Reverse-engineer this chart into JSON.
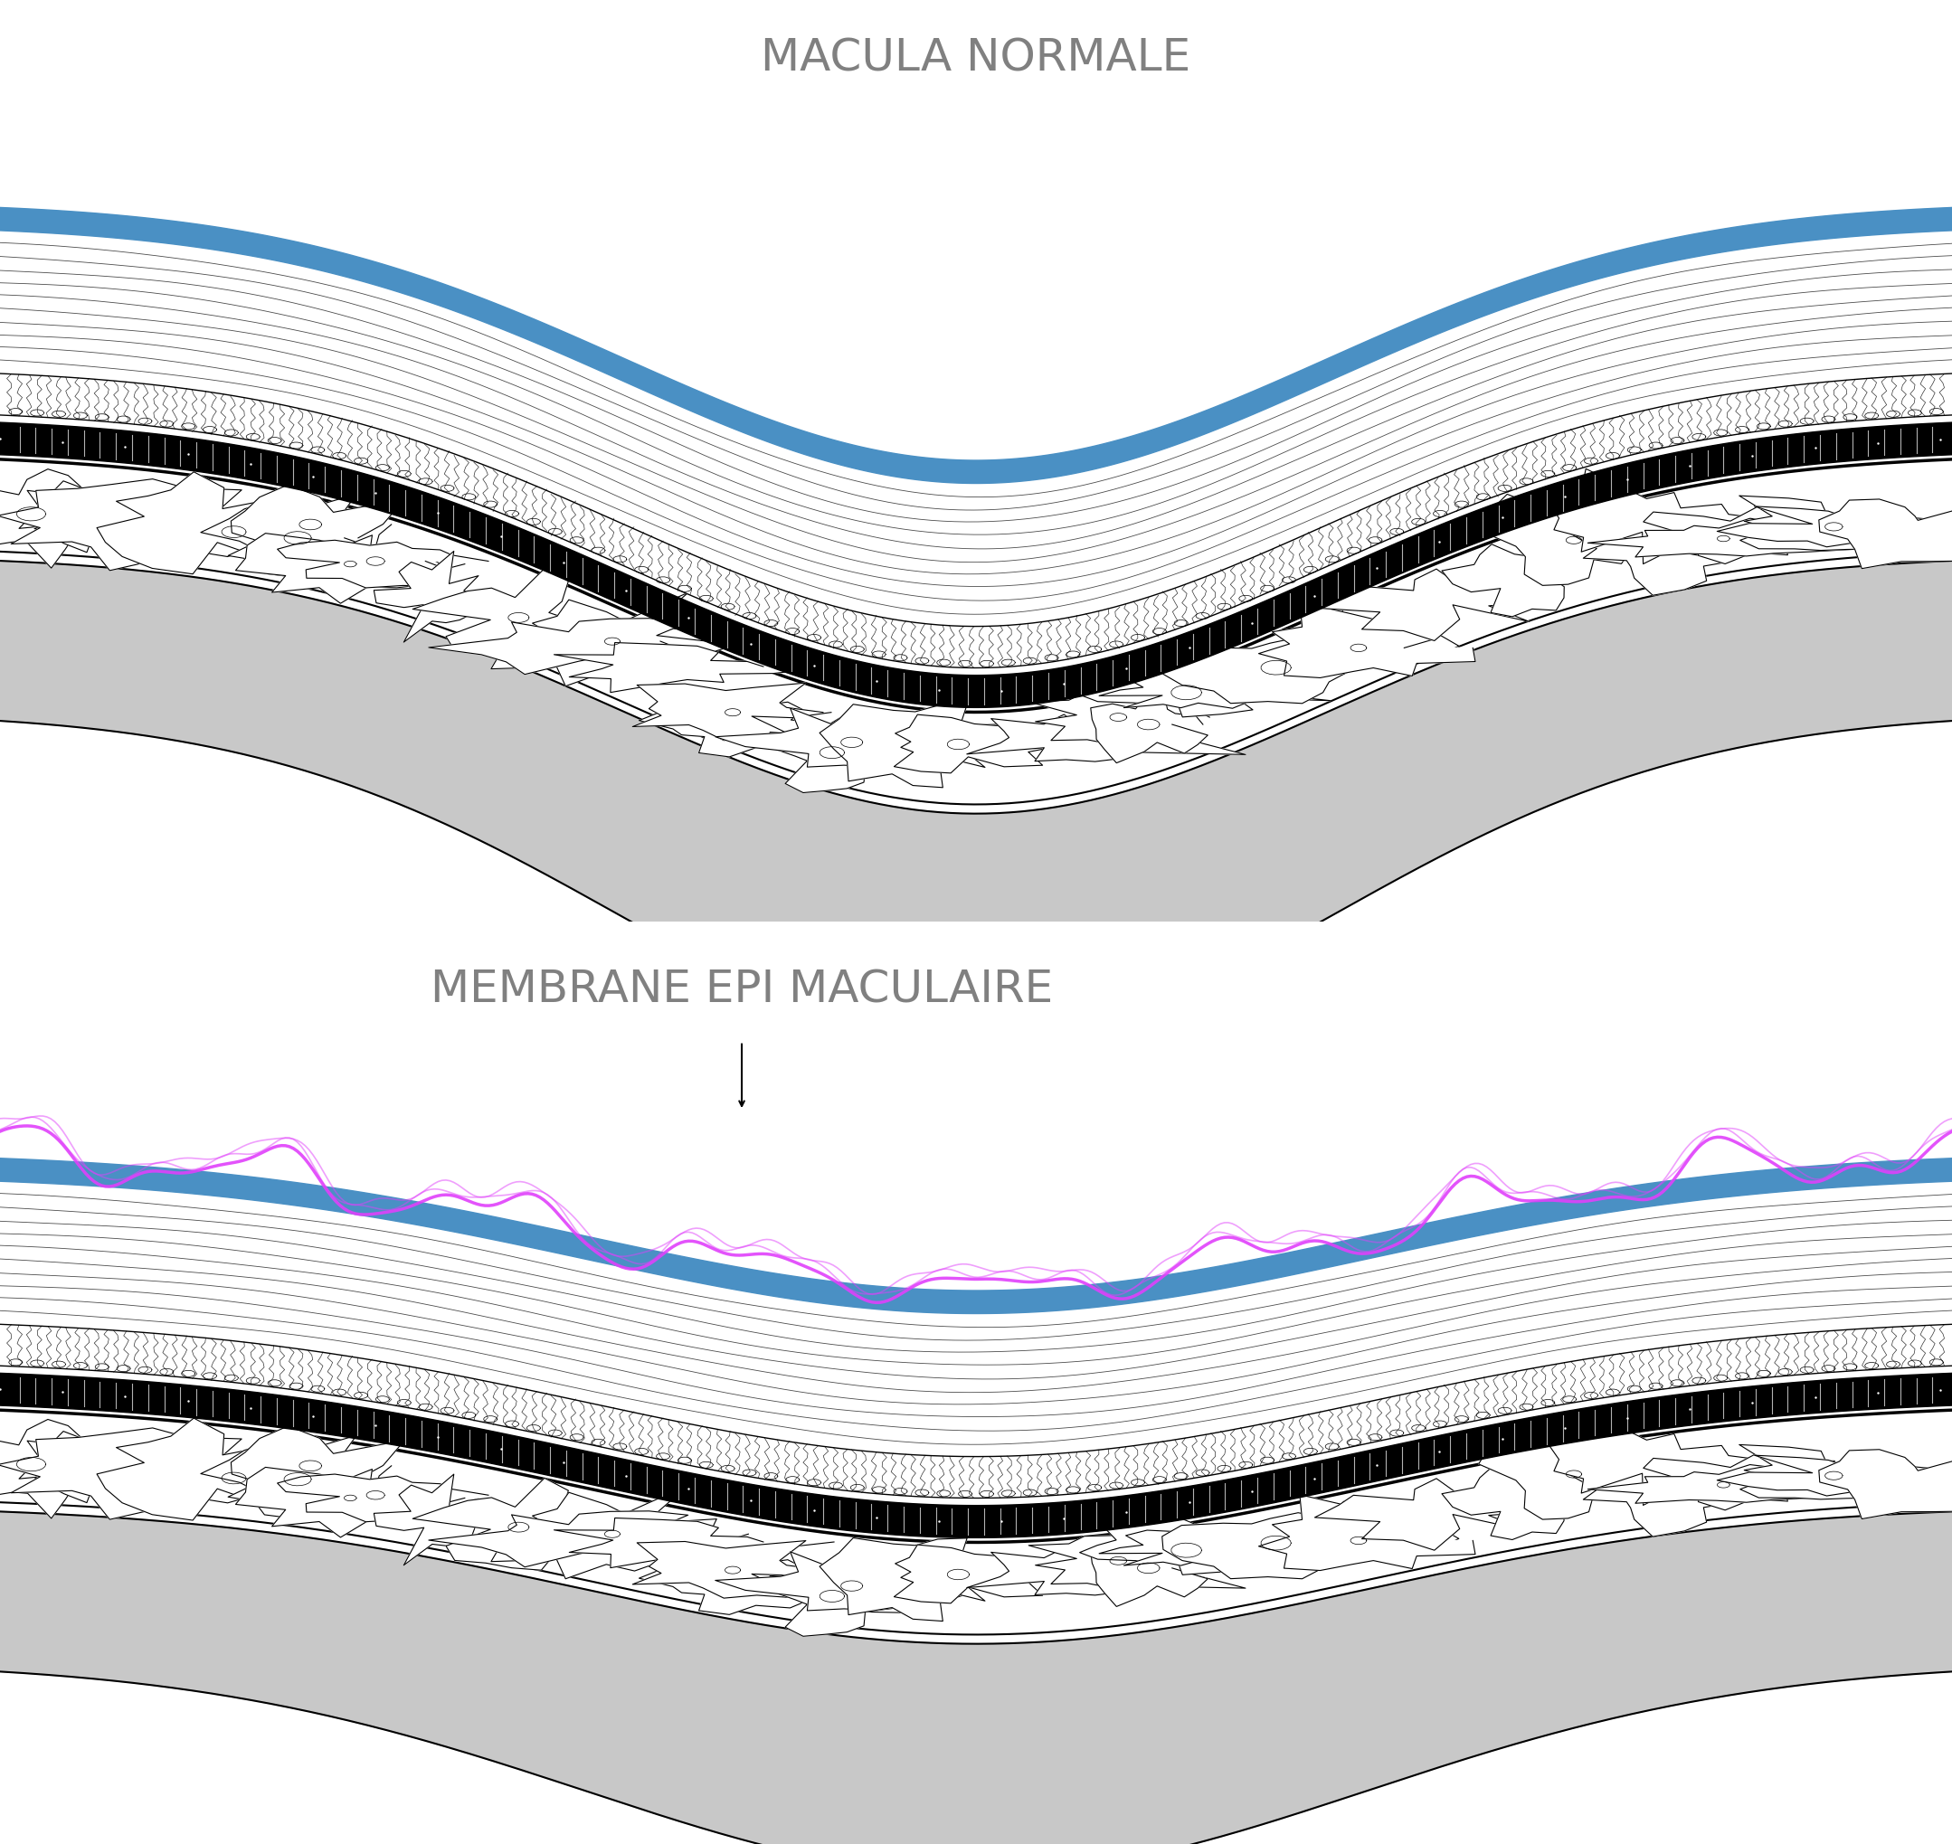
{
  "title1": "MACULA NORMALE",
  "title2": "MEMBRANE EPI MACULAIRE",
  "title_color": "#808080",
  "title_fontsize": 36,
  "blue_color": "#4a90c4",
  "pink_color": "#e040fb",
  "black_color": "#000000",
  "gray_color": "#c0c0c0",
  "white_color": "#ffffff",
  "bg_color": "#ffffff"
}
